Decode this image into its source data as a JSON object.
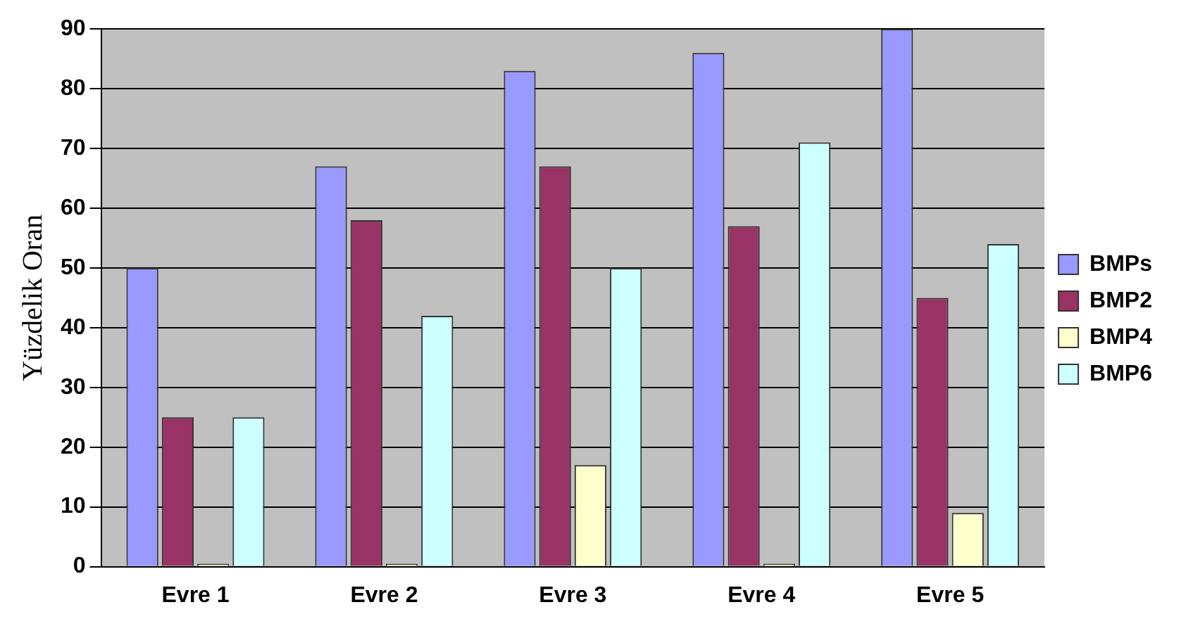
{
  "chart_data": {
    "type": "bar",
    "ylabel": "Yüzdelik Oran",
    "categories": [
      "Evre 1",
      "Evre 2",
      "Evre 3",
      "Evre 4",
      "Evre 5"
    ],
    "series": [
      {
        "name": "BMPs",
        "color": "#9999ff",
        "values": [
          50,
          67,
          83,
          86,
          90
        ]
      },
      {
        "name": "BMP2",
        "color": "#993366",
        "values": [
          25,
          58,
          67,
          57,
          45
        ]
      },
      {
        "name": "BMP4",
        "color": "#ffffcc",
        "values": [
          0,
          0,
          17,
          0,
          9
        ]
      },
      {
        "name": "BMP6",
        "color": "#ccffff",
        "values": [
          25,
          42,
          50,
          71,
          54
        ]
      }
    ],
    "ylim": [
      0,
      90
    ],
    "yticks": [
      0,
      10,
      20,
      30,
      40,
      50,
      60,
      70,
      80,
      90
    ],
    "grid": "y",
    "legend": "right"
  }
}
